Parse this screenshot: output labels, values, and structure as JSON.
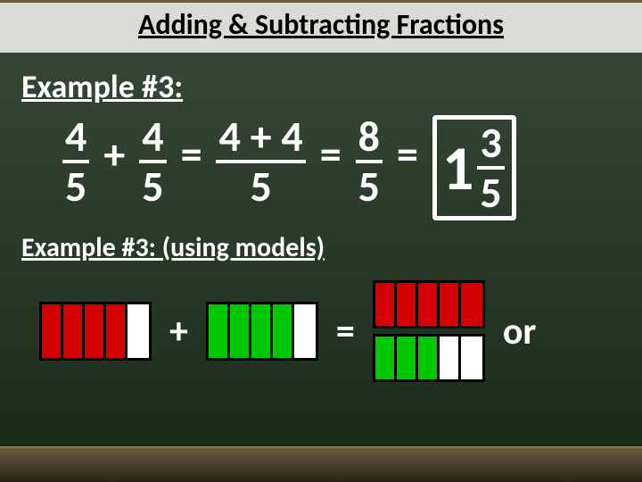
{
  "title": "Adding & Subtracting Fractions",
  "example_heading": "Example #3:",
  "subheading": "Example #3: (using models)",
  "equation": {
    "frac1": {
      "num": "4",
      "den": "5"
    },
    "plus": "+",
    "frac2": {
      "num": "4",
      "den": "5"
    },
    "eq1": "=",
    "frac3": {
      "num": "4 + 4",
      "den": "5"
    },
    "eq2": "=",
    "frac4": {
      "num": "8",
      "den": "5"
    },
    "eq3": "=",
    "mixed": {
      "whole": "1",
      "num": "3",
      "den": "5"
    }
  },
  "models": {
    "plus": "+",
    "eq": "=",
    "or": "or",
    "bar1": [
      "red",
      "red",
      "red",
      "red",
      "white"
    ],
    "bar2": [
      "green",
      "green",
      "green",
      "green",
      "white"
    ],
    "bar3_top": [
      "red",
      "red",
      "red",
      "red",
      "red"
    ],
    "bar3_bot": [
      "green",
      "green",
      "green",
      "white",
      "white"
    ]
  },
  "colors": {
    "red": "#d40000",
    "green": "#00c800",
    "white": "#ffffff",
    "board": "#2d3d2d",
    "band": "#d8dcd4"
  }
}
